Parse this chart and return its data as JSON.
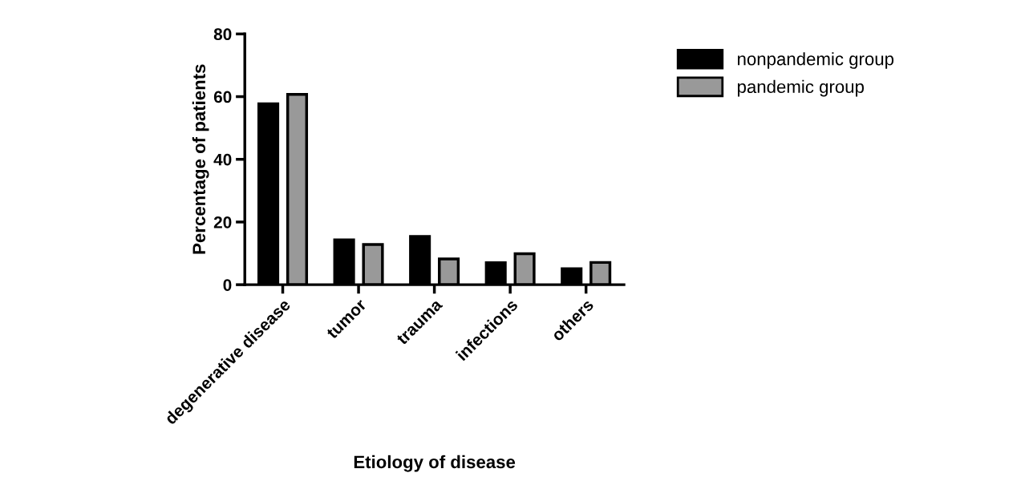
{
  "chart_data": {
    "type": "bar",
    "xlabel": "Etiology of disease",
    "ylabel": "Percentage of patients",
    "categories": [
      "degenerative disease",
      "tumor",
      "trauma",
      "infections",
      "others"
    ],
    "series": [
      {
        "name": "nonpandemic group",
        "color": "#000000",
        "values": [
          57.7,
          14.3,
          15.4,
          7.0,
          5.1
        ]
      },
      {
        "name": "pandemic group",
        "color": "#999999",
        "values": [
          60.7,
          12.8,
          8.2,
          9.9,
          7.1
        ]
      }
    ],
    "ylim": [
      0,
      80
    ],
    "yticks": [
      0,
      20,
      40,
      60,
      80
    ],
    "grid": false,
    "legend": "top right"
  }
}
